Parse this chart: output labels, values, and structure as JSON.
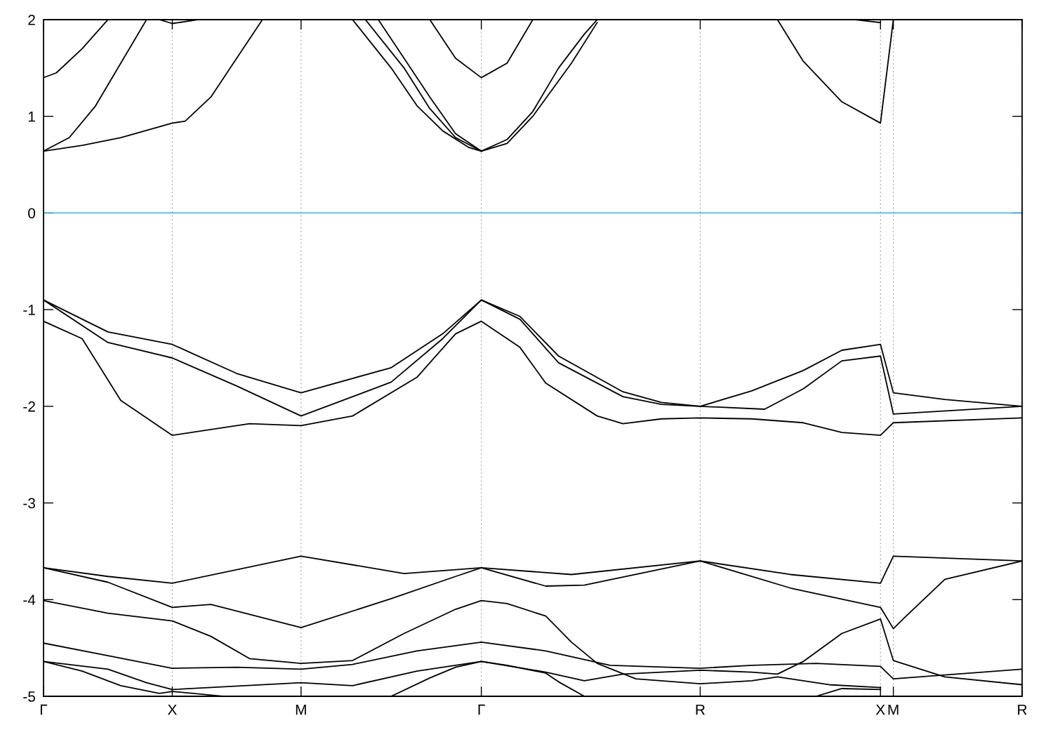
{
  "chart_data": {
    "type": "line",
    "ylim": [
      -5,
      2
    ],
    "yticks": [
      -5,
      -4,
      -3,
      -2,
      -1,
      0,
      1,
      2
    ],
    "categories": [
      "Γ",
      null,
      null,
      null,
      null,
      null,
      null,
      null,
      null,
      null,
      "X",
      null,
      null,
      null,
      null,
      null,
      null,
      null,
      null,
      null,
      "M",
      null,
      null,
      null,
      null,
      null,
      null,
      null,
      null,
      null,
      null,
      null,
      null,
      null,
      "Γ",
      null,
      null,
      null,
      null,
      null,
      null,
      null,
      null,
      null,
      null,
      null,
      null,
      null,
      null,
      null,
      null,
      "R",
      null,
      null,
      null,
      null,
      null,
      null,
      null,
      null,
      null,
      null,
      null,
      null,
      null,
      "X",
      "M",
      null,
      null,
      null,
      null,
      null,
      null,
      null,
      null,
      null,
      "R"
    ],
    "grid": "x",
    "marker": "none",
    "line_style": "solid",
    "ref_lines": [
      {
        "axis": "y",
        "value": 0,
        "color": "#56b4e9"
      }
    ],
    "series": [
      {
        "color": "#000000",
        "values": [
          0.64,
          null,
          0.78,
          null,
          1.1,
          null,
          1.55,
          null,
          2,
          null,
          null,
          null,
          null,
          null,
          null,
          null,
          null,
          null,
          null,
          null,
          null,
          null,
          null,
          null,
          null,
          null,
          null,
          null,
          null,
          null,
          null,
          null,
          null,
          null,
          null,
          null,
          null,
          null,
          null,
          null,
          null,
          null,
          null,
          null,
          null,
          null,
          null,
          null,
          null,
          null,
          null,
          null,
          null,
          null,
          null,
          null,
          null,
          null,
          null,
          null,
          null,
          null,
          null,
          null,
          null,
          null,
          null,
          null,
          null,
          null,
          null,
          null,
          null,
          null,
          null,
          null,
          null
        ]
      },
      {
        "color": "#000000",
        "values": [
          1.4,
          1.45,
          null,
          1.7,
          null,
          2,
          null,
          null,
          null,
          null,
          null,
          null,
          null,
          null,
          null,
          null,
          null,
          null,
          null,
          null,
          null,
          null,
          null,
          null,
          null,
          null,
          null,
          null,
          null,
          null,
          null,
          null,
          null,
          null,
          null,
          null,
          null,
          null,
          null,
          null,
          null,
          null,
          null,
          null,
          null,
          null,
          null,
          null,
          null,
          null,
          null,
          null,
          null,
          null,
          null,
          null,
          null,
          null,
          null,
          null,
          null,
          null,
          null,
          null,
          null,
          null,
          null,
          null,
          null,
          null,
          null,
          null,
          null,
          null,
          null,
          null,
          null
        ]
      },
      {
        "color": "#000000",
        "values": [
          0.64,
          null,
          null,
          0.7,
          null,
          null,
          0.78,
          null,
          null,
          null,
          0.93,
          0.95,
          null,
          1.2,
          null,
          1.6,
          null,
          2,
          null,
          null,
          null,
          null,
          null,
          null,
          null,
          null,
          null,
          null,
          null,
          null,
          null,
          null,
          null,
          null,
          null,
          null,
          null,
          null,
          null,
          null,
          null,
          null,
          null,
          null,
          null,
          null,
          null,
          null,
          null,
          null,
          null,
          null,
          null,
          null,
          null,
          null,
          null,
          null,
          null,
          null,
          null,
          null,
          null,
          null,
          null,
          null,
          null,
          null,
          null,
          null,
          null,
          null,
          null,
          null,
          null,
          null,
          null
        ]
      },
      {
        "color": "#000000",
        "values": [
          null,
          null,
          null,
          null,
          null,
          null,
          null,
          null,
          null,
          2,
          1.96,
          null,
          2,
          null,
          null,
          null,
          null,
          null,
          null,
          null,
          null,
          null,
          null,
          null,
          null,
          null,
          null,
          null,
          null,
          null,
          null,
          null,
          null,
          null,
          null,
          null,
          null,
          null,
          null,
          null,
          null,
          null,
          null,
          null,
          null,
          null,
          null,
          null,
          null,
          null,
          null,
          null,
          null,
          null,
          null,
          null,
          null,
          null,
          null,
          null,
          null,
          null,
          null,
          null,
          null,
          null,
          null,
          null,
          null,
          null,
          null,
          null,
          null,
          null,
          null,
          null,
          null
        ]
      },
      {
        "color": "#000000",
        "values": [
          null,
          null,
          null,
          null,
          null,
          null,
          null,
          null,
          null,
          null,
          null,
          null,
          null,
          null,
          null,
          null,
          null,
          null,
          null,
          null,
          null,
          null,
          null,
          null,
          2,
          null,
          null,
          1.5,
          null,
          1.11,
          null,
          0.85,
          null,
          0.68,
          0.64,
          null,
          null,
          null,
          null,
          null,
          null,
          null,
          null,
          null,
          null,
          null,
          null,
          null,
          null,
          null,
          null,
          null,
          null,
          null,
          null,
          null,
          null,
          null,
          null,
          null,
          null,
          null,
          null,
          null,
          null,
          null,
          null,
          null,
          null,
          null,
          null,
          null,
          null,
          null,
          null,
          null,
          null
        ]
      },
      {
        "color": "#000000",
        "values": [
          null,
          null,
          null,
          null,
          null,
          null,
          null,
          null,
          null,
          null,
          null,
          null,
          null,
          null,
          null,
          null,
          null,
          null,
          null,
          null,
          null,
          null,
          null,
          null,
          null,
          2,
          null,
          null,
          1.5,
          null,
          1.08,
          null,
          0.78,
          null,
          0.64,
          null,
          null,
          null,
          null,
          null,
          null,
          null,
          null,
          null,
          null,
          null,
          null,
          null,
          null,
          null,
          null,
          null,
          null,
          null,
          null,
          null,
          null,
          null,
          null,
          null,
          null,
          null,
          null,
          null,
          null,
          null,
          null,
          null,
          null,
          null,
          null,
          null,
          null,
          null,
          null,
          null,
          null
        ]
      },
      {
        "color": "#000000",
        "values": [
          null,
          null,
          null,
          null,
          null,
          null,
          null,
          null,
          null,
          null,
          null,
          null,
          null,
          null,
          null,
          null,
          null,
          null,
          null,
          null,
          null,
          null,
          null,
          null,
          null,
          null,
          2,
          null,
          1.6,
          null,
          1.2,
          null,
          0.82,
          null,
          0.64,
          null,
          null,
          null,
          null,
          null,
          null,
          null,
          null,
          null,
          null,
          null,
          null,
          null,
          null,
          null,
          null,
          null,
          null,
          null,
          null,
          null,
          null,
          null,
          null,
          null,
          null,
          null,
          null,
          null,
          null,
          null,
          null,
          null,
          null,
          null,
          null,
          null,
          null,
          null,
          null,
          null,
          null
        ]
      },
      {
        "color": "#000000",
        "values": [
          null,
          null,
          null,
          null,
          null,
          null,
          null,
          null,
          null,
          null,
          null,
          null,
          null,
          null,
          null,
          null,
          null,
          null,
          null,
          null,
          null,
          null,
          null,
          null,
          null,
          null,
          null,
          null,
          null,
          null,
          null,
          null,
          null,
          null,
          0.64,
          null,
          0.76,
          null,
          1.05,
          null,
          1.5,
          null,
          1.85,
          2,
          null,
          null,
          null,
          null,
          null,
          null,
          null,
          null,
          null,
          null,
          null,
          null,
          null,
          null,
          null,
          null,
          null,
          null,
          null,
          null,
          null,
          null,
          null,
          null,
          null,
          null,
          null,
          null,
          null,
          null,
          null,
          null,
          null
        ]
      },
      {
        "color": "#000000",
        "values": [
          null,
          null,
          null,
          null,
          null,
          null,
          null,
          null,
          null,
          null,
          null,
          null,
          null,
          null,
          null,
          null,
          null,
          null,
          null,
          null,
          null,
          null,
          null,
          null,
          null,
          null,
          null,
          null,
          null,
          null,
          null,
          null,
          null,
          null,
          0.64,
          null,
          0.72,
          null,
          1.0,
          null,
          null,
          1.55,
          null,
          1.97,
          null,
          null,
          null,
          null,
          null,
          null,
          null,
          null,
          null,
          null,
          null,
          null,
          null,
          null,
          null,
          null,
          null,
          null,
          null,
          null,
          null,
          null,
          null,
          null,
          null,
          null,
          null,
          null,
          null,
          null,
          null,
          null,
          null
        ]
      },
      {
        "color": "#000000",
        "values": [
          null,
          null,
          null,
          null,
          null,
          null,
          null,
          null,
          null,
          null,
          null,
          null,
          null,
          null,
          null,
          null,
          null,
          null,
          null,
          null,
          null,
          null,
          null,
          null,
          null,
          null,
          null,
          null,
          null,
          null,
          2,
          null,
          1.6,
          null,
          1.4,
          null,
          1.55,
          null,
          2,
          null,
          null,
          null,
          null,
          null,
          null,
          null,
          null,
          null,
          null,
          null,
          null,
          null,
          null,
          null,
          null,
          null,
          null,
          null,
          null,
          null,
          null,
          null,
          null,
          null,
          null,
          null,
          null,
          null,
          null,
          null,
          null,
          null,
          null,
          null,
          null,
          null,
          null
        ]
      },
      {
        "color": "#000000",
        "values": [
          null,
          null,
          null,
          null,
          null,
          null,
          null,
          null,
          null,
          null,
          null,
          null,
          null,
          null,
          null,
          null,
          null,
          null,
          null,
          null,
          null,
          null,
          null,
          null,
          null,
          null,
          null,
          null,
          null,
          null,
          null,
          null,
          null,
          null,
          null,
          null,
          null,
          null,
          null,
          null,
          null,
          null,
          null,
          null,
          null,
          null,
          null,
          null,
          null,
          null,
          null,
          null,
          null,
          null,
          null,
          null,
          null,
          2,
          null,
          1.57,
          null,
          null,
          1.15,
          null,
          null,
          0.93,
          2,
          null,
          null,
          null,
          null,
          null,
          null,
          null,
          null,
          null,
          null
        ]
      },
      {
        "color": "#000000",
        "values": [
          null,
          null,
          null,
          null,
          null,
          null,
          null,
          null,
          null,
          null,
          null,
          null,
          null,
          null,
          null,
          null,
          null,
          null,
          null,
          null,
          null,
          null,
          null,
          null,
          null,
          null,
          null,
          null,
          null,
          null,
          null,
          null,
          null,
          null,
          null,
          null,
          null,
          null,
          null,
          null,
          null,
          null,
          null,
          null,
          null,
          null,
          null,
          null,
          null,
          null,
          null,
          null,
          null,
          null,
          null,
          null,
          null,
          null,
          null,
          null,
          null,
          null,
          null,
          2,
          null,
          1.97,
          null,
          null,
          null,
          null,
          null,
          null,
          null,
          null,
          null,
          null,
          null
        ]
      },
      {
        "color": "#000000",
        "values": [
          -0.9,
          null,
          null,
          null,
          null,
          -1.23,
          null,
          null,
          null,
          null,
          -1.36,
          null,
          null,
          null,
          null,
          -1.66,
          null,
          null,
          null,
          null,
          -1.86,
          null,
          null,
          null,
          null,
          null,
          null,
          -1.6,
          null,
          null,
          null,
          -1.25,
          null,
          null,
          -0.9,
          null,
          null,
          -1.07,
          null,
          null,
          -1.48,
          null,
          null,
          null,
          null,
          -1.85,
          null,
          null,
          -1.96,
          null,
          null,
          -2.0,
          null,
          null,
          null,
          -1.84,
          null,
          null,
          null,
          -1.63,
          null,
          null,
          -1.42,
          null,
          null,
          -1.36,
          -1.86,
          null,
          null,
          null,
          -1.93,
          null,
          null,
          null,
          null,
          null,
          -2.0
        ]
      },
      {
        "color": "#000000",
        "values": [
          -0.9,
          null,
          null,
          null,
          null,
          -1.34,
          null,
          null,
          null,
          null,
          -1.5,
          null,
          null,
          null,
          null,
          -1.79,
          null,
          null,
          null,
          null,
          -2.1,
          null,
          null,
          null,
          null,
          null,
          null,
          -1.75,
          null,
          null,
          null,
          -1.3,
          null,
          null,
          -0.9,
          null,
          null,
          -1.1,
          null,
          null,
          -1.55,
          null,
          null,
          null,
          null,
          -1.9,
          null,
          null,
          -1.98,
          null,
          null,
          -2.0,
          null,
          null,
          null,
          null,
          -2.03,
          null,
          null,
          -1.82,
          null,
          null,
          -1.53,
          null,
          null,
          -1.48,
          -2.08,
          null,
          null,
          null,
          null,
          null,
          null,
          null,
          null,
          null,
          -2.0
        ]
      },
      {
        "color": "#000000",
        "values": [
          -1.12,
          null,
          null,
          -1.3,
          null,
          null,
          -1.94,
          null,
          null,
          null,
          -2.3,
          null,
          null,
          null,
          null,
          null,
          -2.18,
          null,
          null,
          null,
          -2.2,
          null,
          null,
          null,
          -2.1,
          null,
          null,
          null,
          null,
          -1.7,
          null,
          null,
          -1.25,
          null,
          -1.12,
          null,
          null,
          -1.39,
          null,
          -1.76,
          null,
          null,
          null,
          -2.1,
          null,
          -2.18,
          null,
          null,
          -2.13,
          null,
          null,
          -2.12,
          null,
          null,
          null,
          -2.13,
          null,
          null,
          null,
          -2.17,
          null,
          null,
          -2.27,
          null,
          null,
          -2.3,
          -2.17,
          null,
          null,
          null,
          null,
          null,
          null,
          null,
          null,
          null,
          -2.12
        ]
      },
      {
        "color": "#000000",
        "values": [
          -3.67,
          null,
          null,
          null,
          null,
          -3.76,
          null,
          null,
          null,
          null,
          -3.83,
          null,
          null,
          null,
          null,
          null,
          null,
          null,
          null,
          null,
          -3.55,
          null,
          null,
          null,
          null,
          null,
          null,
          null,
          -3.73,
          null,
          null,
          null,
          null,
          null,
          -3.67,
          null,
          null,
          null,
          null,
          null,
          null,
          -3.74,
          null,
          null,
          null,
          null,
          null,
          null,
          null,
          null,
          null,
          -3.6,
          null,
          null,
          null,
          null,
          null,
          null,
          -3.74,
          null,
          null,
          null,
          null,
          null,
          null,
          -3.83,
          -3.55,
          null,
          null,
          null,
          null,
          null,
          null,
          null,
          null,
          null,
          -3.6
        ]
      },
      {
        "color": "#000000",
        "values": [
          -3.67,
          null,
          null,
          null,
          null,
          -3.82,
          null,
          null,
          null,
          null,
          -4.08,
          null,
          null,
          -4.05,
          null,
          null,
          null,
          null,
          null,
          null,
          -4.29,
          null,
          null,
          null,
          null,
          null,
          null,
          -3.99,
          null,
          null,
          null,
          null,
          -3.76,
          null,
          -3.67,
          null,
          null,
          null,
          null,
          -3.86,
          null,
          null,
          -3.85,
          null,
          null,
          null,
          null,
          null,
          null,
          null,
          null,
          -3.6,
          null,
          null,
          null,
          null,
          null,
          null,
          -3.88,
          null,
          null,
          null,
          null,
          null,
          null,
          -4.08,
          -4.3,
          -4.17,
          null,
          null,
          -3.79,
          null,
          null,
          null,
          null,
          null,
          -3.6
        ]
      },
      {
        "color": "#000000",
        "values": [
          -4.01,
          null,
          null,
          null,
          null,
          -4.14,
          null,
          null,
          null,
          null,
          -4.22,
          null,
          null,
          -4.38,
          null,
          null,
          -4.61,
          null,
          null,
          null,
          -4.66,
          null,
          null,
          null,
          -4.63,
          null,
          null,
          null,
          -4.35,
          null,
          null,
          null,
          -4.1,
          null,
          -4.01,
          null,
          -4.04,
          null,
          null,
          -4.17,
          null,
          -4.44,
          null,
          -4.66,
          null,
          null,
          -4.82,
          null,
          null,
          null,
          null,
          -4.87,
          null,
          null,
          null,
          -4.84,
          null,
          -4.8,
          null,
          null,
          null,
          -4.88,
          null,
          null,
          null,
          -4.91,
          null,
          null,
          null,
          null,
          null,
          null,
          null,
          null,
          null,
          null,
          null
        ]
      },
      {
        "color": "#000000",
        "values": [
          -4.45,
          null,
          null,
          null,
          null,
          -4.58,
          null,
          null,
          null,
          null,
          -4.71,
          null,
          null,
          null,
          null,
          -4.7,
          null,
          null,
          null,
          null,
          -4.72,
          null,
          null,
          null,
          -4.67,
          null,
          null,
          null,
          null,
          -4.53,
          null,
          null,
          null,
          null,
          -4.44,
          null,
          null,
          null,
          null,
          -4.53,
          null,
          null,
          null,
          null,
          -4.68,
          null,
          null,
          null,
          null,
          null,
          null,
          -4.71,
          null,
          null,
          null,
          -4.68,
          null,
          null,
          null,
          null,
          -4.66,
          null,
          null,
          null,
          null,
          -4.69,
          -4.82,
          null,
          null,
          null,
          null,
          null,
          null,
          null,
          null,
          null,
          -4.72
        ]
      },
      {
        "color": "#000000",
        "values": [
          -4.64,
          null,
          null,
          null,
          null,
          -4.72,
          null,
          null,
          -4.86,
          null,
          -4.93,
          null,
          null,
          null,
          null,
          null,
          null,
          null,
          null,
          null,
          -4.86,
          null,
          null,
          null,
          -4.89,
          null,
          null,
          null,
          null,
          -4.74,
          null,
          null,
          null,
          null,
          -4.64,
          null,
          null,
          null,
          null,
          -4.75,
          null,
          null,
          -4.84,
          null,
          null,
          -4.77,
          null,
          null,
          null,
          null,
          null,
          -4.73,
          null,
          null,
          null,
          -4.75,
          null,
          -4.77,
          null,
          -4.64,
          null,
          null,
          -4.35,
          null,
          null,
          -4.2,
          -4.63,
          null,
          null,
          null,
          -4.8,
          null,
          null,
          null,
          null,
          null,
          -4.88
        ]
      },
      {
        "color": "#000000",
        "values": [
          -4.64,
          null,
          null,
          -4.74,
          null,
          null,
          -4.89,
          null,
          null,
          -4.97,
          -4.95,
          null,
          null,
          null,
          -5,
          null,
          null,
          null,
          null,
          null,
          null,
          null,
          null,
          null,
          null,
          null,
          null,
          null,
          null,
          null,
          null,
          null,
          null,
          null,
          null,
          null,
          null,
          null,
          null,
          null,
          null,
          null,
          null,
          null,
          null,
          null,
          null,
          null,
          null,
          null,
          null,
          null,
          null,
          null,
          null,
          null,
          null,
          null,
          null,
          null,
          null,
          null,
          null,
          null,
          null,
          null,
          null,
          null,
          null,
          null,
          null,
          null,
          null,
          null,
          null,
          null,
          null
        ]
      },
      {
        "color": "#000000",
        "values": [
          null,
          null,
          null,
          null,
          null,
          null,
          null,
          null,
          null,
          null,
          null,
          null,
          null,
          null,
          null,
          null,
          null,
          null,
          null,
          null,
          null,
          null,
          null,
          null,
          null,
          null,
          null,
          -5,
          null,
          null,
          -4.81,
          null,
          -4.7,
          null,
          -4.64,
          null,
          -4.68,
          null,
          null,
          -4.76,
          -4.85,
          null,
          -5,
          null,
          null,
          null,
          null,
          null,
          null,
          null,
          null,
          null,
          null,
          null,
          null,
          null,
          null,
          null,
          null,
          null,
          null,
          null,
          null,
          null,
          null,
          null,
          null,
          null,
          null,
          null,
          null,
          null,
          null,
          null,
          null,
          null,
          null
        ]
      },
      {
        "color": "#000000",
        "values": [
          null,
          null,
          null,
          null,
          null,
          null,
          null,
          null,
          null,
          null,
          null,
          null,
          null,
          null,
          null,
          null,
          null,
          null,
          null,
          null,
          null,
          null,
          null,
          null,
          null,
          null,
          null,
          null,
          null,
          null,
          null,
          null,
          null,
          null,
          null,
          null,
          null,
          null,
          null,
          null,
          null,
          null,
          null,
          null,
          null,
          null,
          null,
          null,
          null,
          null,
          null,
          null,
          null,
          null,
          null,
          null,
          null,
          null,
          null,
          null,
          -5,
          null,
          -4.92,
          null,
          null,
          -4.93,
          null,
          null,
          null,
          null,
          null,
          null,
          null,
          null,
          null,
          null,
          null
        ]
      }
    ]
  }
}
